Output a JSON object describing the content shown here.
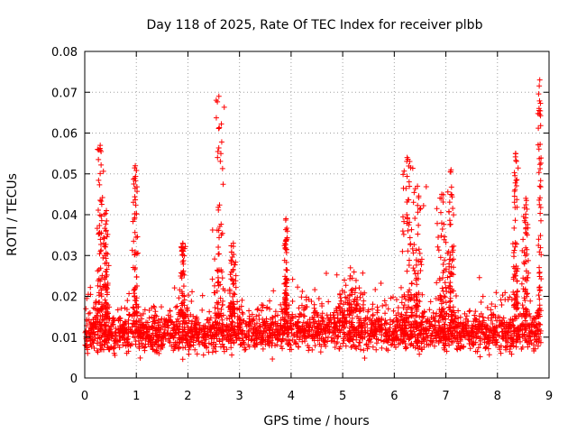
{
  "chart_data": {
    "type": "scatter",
    "title": "Day 118 of 2025, Rate Of TEC Index for receiver plbb",
    "xlabel": "GPS time / hours",
    "ylabel": "ROTI / TECUs",
    "xlim": [
      0,
      9
    ],
    "ylim": [
      0,
      0.08
    ],
    "xticks": [
      0,
      1,
      2,
      3,
      4,
      5,
      6,
      7,
      8,
      9
    ],
    "xtick_labels": [
      "0",
      "1",
      "2",
      "3",
      "4",
      "5",
      "6",
      "7",
      "8",
      "9"
    ],
    "yticks": [
      0,
      0.01,
      0.02,
      0.03,
      0.04,
      0.05,
      0.06,
      0.07,
      0.08
    ],
    "ytick_labels": [
      "0",
      "0.01",
      "0.02",
      "0.03",
      "0.04",
      "0.05",
      "0.06",
      "0.07",
      "0.08"
    ],
    "grid": true,
    "marker": "+",
    "marker_color": "#ff0000",
    "x_data_end": 8.85,
    "baseline": [
      [
        0.0,
        0.011
      ],
      [
        1.0,
        0.011
      ],
      [
        2.0,
        0.011
      ],
      [
        3.0,
        0.011
      ],
      [
        4.0,
        0.012
      ],
      [
        5.0,
        0.012
      ],
      [
        6.0,
        0.011
      ],
      [
        7.0,
        0.011
      ],
      [
        8.0,
        0.011
      ],
      [
        8.85,
        0.011
      ]
    ],
    "spikes": [
      {
        "x": 0.3,
        "width": 0.06,
        "peak": 0.057
      },
      {
        "x": 0.42,
        "width": 0.06,
        "peak": 0.041
      },
      {
        "x": 0.98,
        "width": 0.06,
        "peak": 0.052
      },
      {
        "x": 1.9,
        "width": 0.07,
        "peak": 0.033
      },
      {
        "x": 2.6,
        "width": 0.1,
        "peak": 0.069
      },
      {
        "x": 2.88,
        "width": 0.06,
        "peak": 0.033
      },
      {
        "x": 3.9,
        "width": 0.03,
        "peak": 0.039
      },
      {
        "x": 5.15,
        "width": 0.35,
        "peak": 0.027
      },
      {
        "x": 6.25,
        "width": 0.12,
        "peak": 0.054
      },
      {
        "x": 6.45,
        "width": 0.12,
        "peak": 0.047
      },
      {
        "x": 6.92,
        "width": 0.1,
        "peak": 0.045
      },
      {
        "x": 7.1,
        "width": 0.06,
        "peak": 0.051
      },
      {
        "x": 8.35,
        "width": 0.06,
        "peak": 0.055
      },
      {
        "x": 8.55,
        "width": 0.06,
        "peak": 0.044
      },
      {
        "x": 8.82,
        "width": 0.04,
        "peak": 0.073
      }
    ]
  }
}
